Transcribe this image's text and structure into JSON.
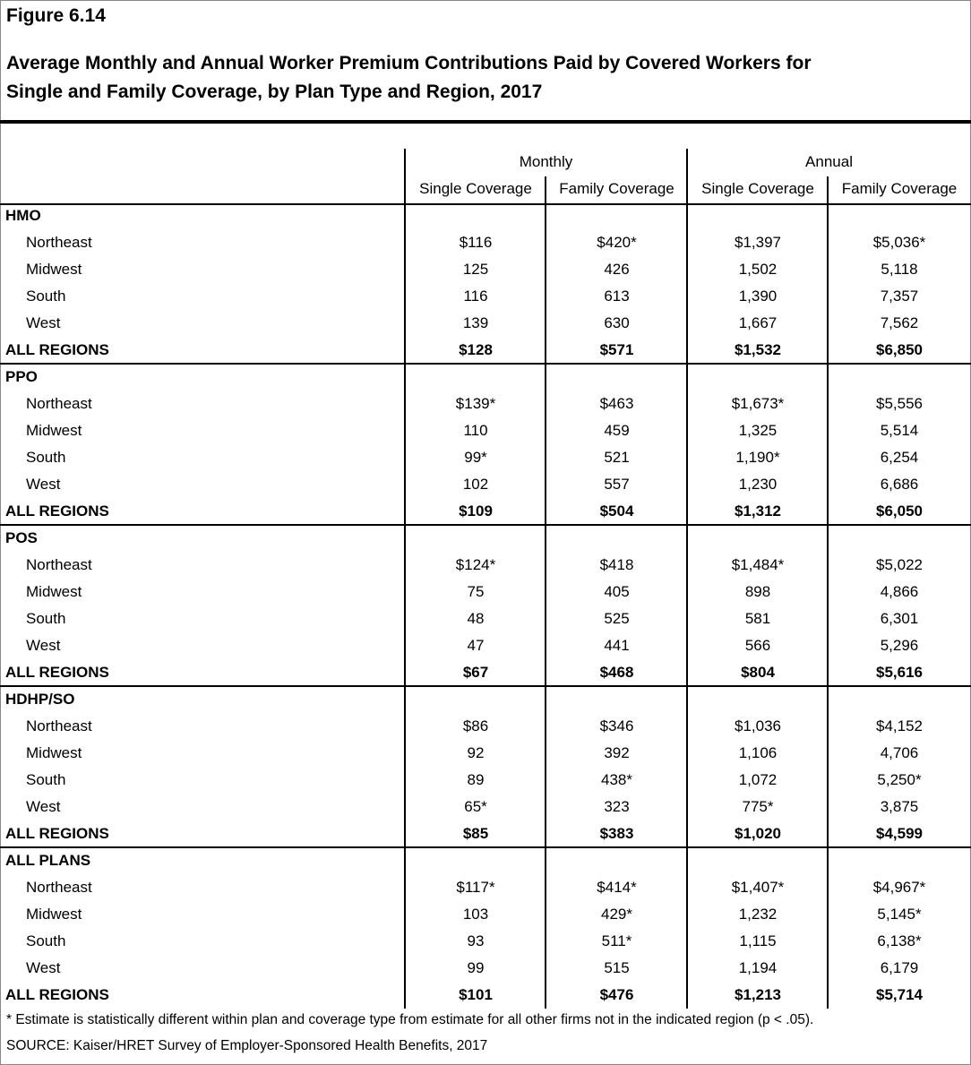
{
  "figure_label": "Figure 6.14",
  "title_line1": "Average Monthly and Annual Worker Premium Contributions Paid by Covered Workers for",
  "title_line2": "Single and Family Coverage, by Plan Type and Region, 2017",
  "header": {
    "groups": [
      "Monthly",
      "Annual"
    ],
    "columns": [
      "Single Coverage",
      "Family Coverage",
      "Single Coverage",
      "Family Coverage"
    ]
  },
  "sections": [
    {
      "label": "HMO",
      "rows": [
        {
          "label": "Northeast",
          "values": [
            "$116",
            "$420*",
            "$1,397",
            "$5,036*"
          ]
        },
        {
          "label": "Midwest",
          "values": [
            "125",
            "426",
            "1,502",
            "5,118"
          ]
        },
        {
          "label": "South",
          "values": [
            "116",
            "613",
            "1,390",
            "7,357"
          ]
        },
        {
          "label": "West",
          "values": [
            "139",
            "630",
            "1,667",
            "7,562"
          ]
        },
        {
          "label": "ALL REGIONS",
          "values": [
            "$128",
            "$571",
            "$1,532",
            "$6,850"
          ],
          "bold": true
        }
      ]
    },
    {
      "label": "PPO",
      "rows": [
        {
          "label": "Northeast",
          "values": [
            "$139*",
            "$463",
            "$1,673*",
            "$5,556"
          ]
        },
        {
          "label": "Midwest",
          "values": [
            "110",
            "459",
            "1,325",
            "5,514"
          ]
        },
        {
          "label": "South",
          "values": [
            "99*",
            "521",
            "1,190*",
            "6,254"
          ]
        },
        {
          "label": "West",
          "values": [
            "102",
            "557",
            "1,230",
            "6,686"
          ]
        },
        {
          "label": "ALL REGIONS",
          "values": [
            "$109",
            "$504",
            "$1,312",
            "$6,050"
          ],
          "bold": true
        }
      ]
    },
    {
      "label": "POS",
      "rows": [
        {
          "label": "Northeast",
          "values": [
            "$124*",
            "$418",
            "$1,484*",
            "$5,022"
          ]
        },
        {
          "label": "Midwest",
          "values": [
            "75",
            "405",
            "898",
            "4,866"
          ]
        },
        {
          "label": "South",
          "values": [
            "48",
            "525",
            "581",
            "6,301"
          ]
        },
        {
          "label": "West",
          "values": [
            "47",
            "441",
            "566",
            "5,296"
          ]
        },
        {
          "label": "ALL REGIONS",
          "values": [
            "$67",
            "$468",
            "$804",
            "$5,616"
          ],
          "bold": true
        }
      ]
    },
    {
      "label": "HDHP/SO",
      "rows": [
        {
          "label": "Northeast",
          "values": [
            "$86",
            "$346",
            "$1,036",
            "$4,152"
          ]
        },
        {
          "label": "Midwest",
          "values": [
            "92",
            "392",
            "1,106",
            "4,706"
          ]
        },
        {
          "label": "South",
          "values": [
            "89",
            "438*",
            "1,072",
            "5,250*"
          ]
        },
        {
          "label": "West",
          "values": [
            "65*",
            "323",
            "775*",
            "3,875"
          ]
        },
        {
          "label": "ALL REGIONS",
          "values": [
            "$85",
            "$383",
            "$1,020",
            "$4,599"
          ],
          "bold": true
        }
      ]
    },
    {
      "label": "ALL PLANS",
      "rows": [
        {
          "label": "Northeast",
          "values": [
            "$117*",
            "$414*",
            "$1,407*",
            "$4,967*"
          ]
        },
        {
          "label": "Midwest",
          "values": [
            "103",
            "429*",
            "1,232",
            "5,145*"
          ]
        },
        {
          "label": "South",
          "values": [
            "93",
            "511*",
            "1,115",
            "6,138*"
          ]
        },
        {
          "label": "West",
          "values": [
            "99",
            "515",
            "1,194",
            "6,179"
          ]
        },
        {
          "label": "ALL REGIONS",
          "values": [
            "$101",
            "$476",
            "$1,213",
            "$5,714"
          ],
          "bold": true
        }
      ]
    }
  ],
  "footnote": "* Estimate is statistically different within plan and coverage type from estimate for all other firms not in the indicated region (p < .05).",
  "source": "SOURCE: Kaiser/HRET Survey of Employer-Sponsored Health Benefits, 2017"
}
